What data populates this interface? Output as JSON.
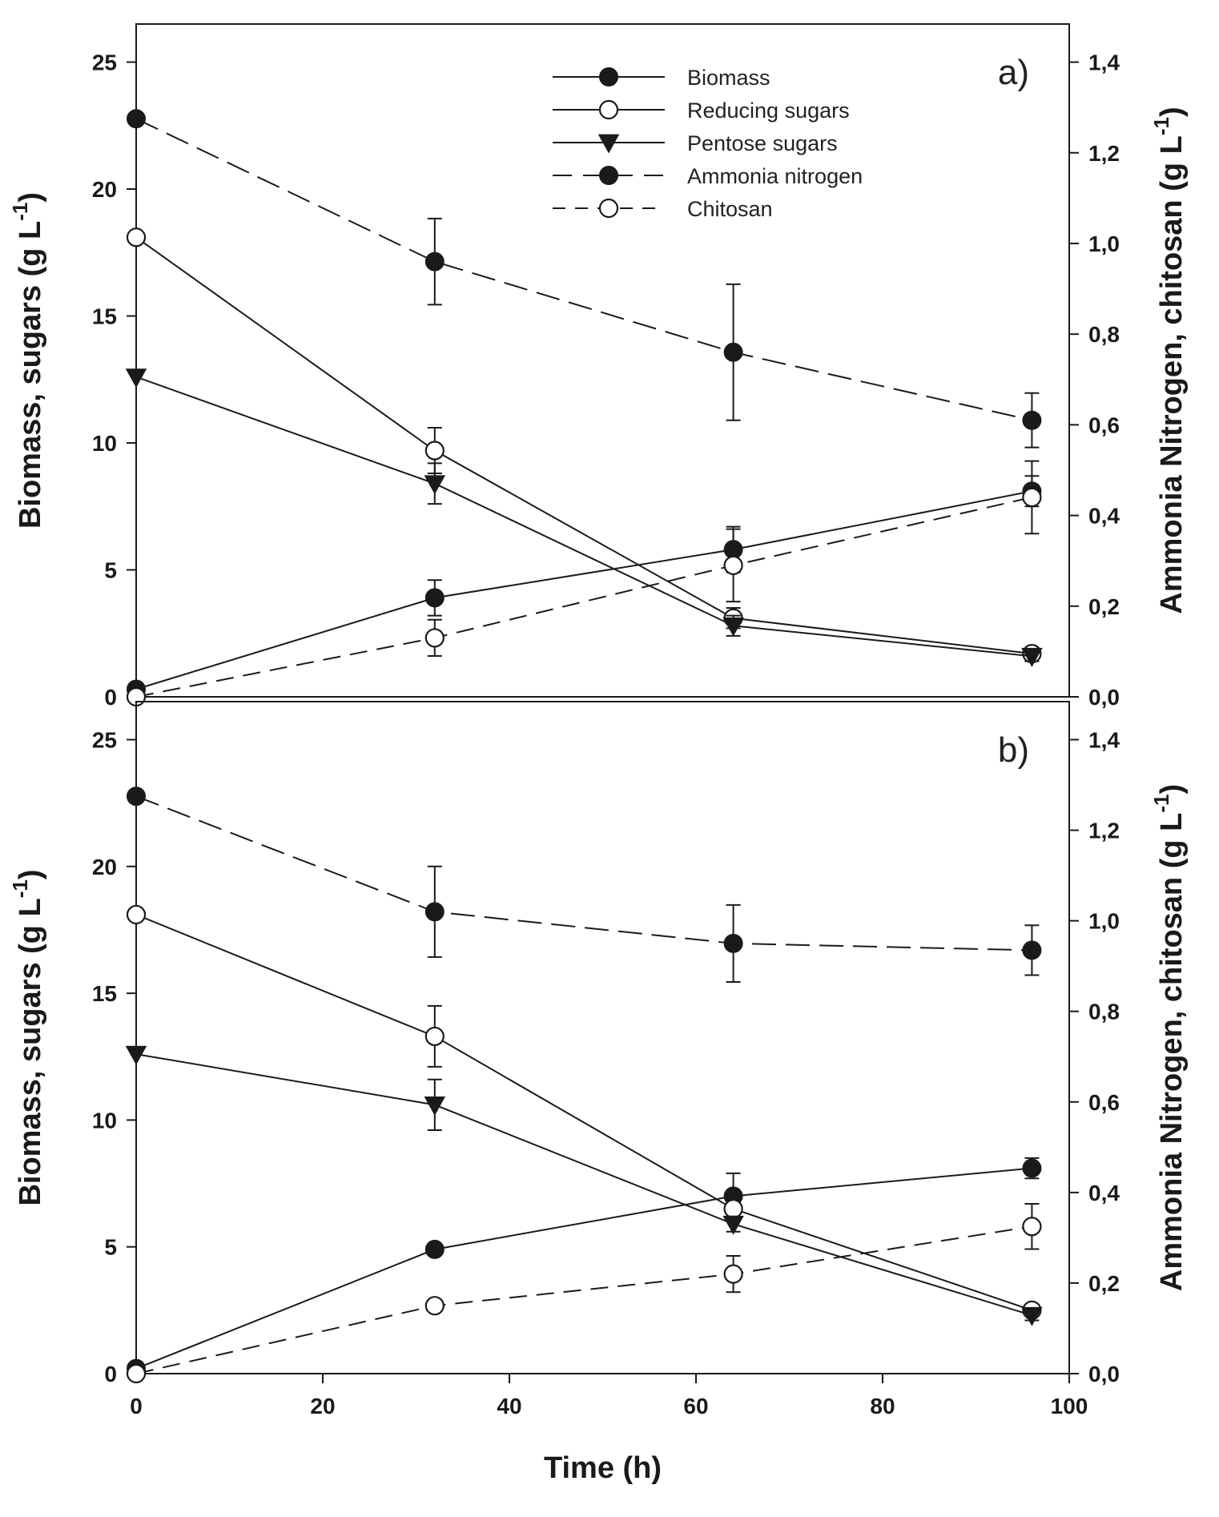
{
  "chart_data": [
    {
      "panel_label": "a)",
      "type": "line",
      "xlabel": "Time (h)",
      "ylabel_left": "Biomass, sugars (g L",
      "ylabel_left_unit": "-1",
      "ylabel_left_close": ")",
      "ylabel_right": "Ammonia Nitrogen, chitosan (g L",
      "ylabel_right_unit": "-1",
      "ylabel_right_close": ")",
      "xlim": [
        0,
        100
      ],
      "ylim_left": [
        0,
        26.5
      ],
      "ylim_right": [
        0,
        1.484
      ],
      "yticks_left": [
        "0",
        "5",
        "10",
        "15",
        "20",
        "25"
      ],
      "yticks_right": [
        "0,0",
        "0,2",
        "0,4",
        "0,6",
        "0,8",
        "1,0",
        "1,2",
        "1,4"
      ],
      "x": [
        0,
        32,
        64,
        96
      ],
      "series": [
        {
          "name": "Biomass",
          "axis": "left",
          "marker": "filled-circle",
          "line": "solid",
          "values": [
            0.3,
            3.9,
            5.8,
            8.1
          ],
          "errors": [
            0,
            0.7,
            0.9,
            0.6
          ]
        },
        {
          "name": "Reducing sugars",
          "axis": "left",
          "marker": "open-circle",
          "line": "solid",
          "values": [
            18.1,
            9.7,
            3.1,
            1.7
          ],
          "errors": [
            0,
            0.9,
            0.4,
            0.2
          ]
        },
        {
          "name": "Pentose sugars",
          "axis": "left",
          "marker": "filled-triangle-down",
          "line": "solid",
          "values": [
            12.6,
            8.4,
            2.8,
            1.6
          ],
          "errors": [
            0,
            0.8,
            0.4,
            0.2
          ]
        },
        {
          "name": "Ammonia nitrogen",
          "axis": "right",
          "marker": "filled-circle",
          "line": "dashed-long",
          "values": [
            1.275,
            0.96,
            0.76,
            0.61
          ],
          "errors": [
            0,
            0.095,
            0.15,
            0.06
          ]
        },
        {
          "name": "Chitosan",
          "axis": "right",
          "marker": "open-circle",
          "line": "dashed",
          "values": [
            0.0,
            0.13,
            0.29,
            0.44
          ],
          "errors": [
            0,
            0.04,
            0.08,
            0.08
          ]
        }
      ]
    },
    {
      "panel_label": "b)",
      "type": "line",
      "xlabel": "Time (h)",
      "ylabel_left": "Biomass, sugars (g L",
      "ylabel_left_unit": "-1",
      "ylabel_left_close": ")",
      "ylabel_right": "Ammonia Nitrogen, chitosan (g L",
      "ylabel_right_unit": "-1",
      "ylabel_right_close": ")",
      "xlim": [
        0,
        100
      ],
      "ylim_left": [
        0,
        26.5
      ],
      "ylim_right": [
        0,
        1.484
      ],
      "yticks_left": [
        "0",
        "5",
        "10",
        "15",
        "20",
        "25"
      ],
      "yticks_right": [
        "0,0",
        "0,2",
        "0,4",
        "0,6",
        "0,8",
        "1,0",
        "1,2",
        "1,4"
      ],
      "xticks": [
        "0",
        "20",
        "40",
        "60",
        "80",
        "100"
      ],
      "x": [
        0,
        32,
        64,
        96
      ],
      "series": [
        {
          "name": "Biomass",
          "axis": "left",
          "marker": "filled-circle",
          "line": "solid",
          "values": [
            0.2,
            4.9,
            7.0,
            8.1
          ],
          "errors": [
            0,
            0.2,
            0.9,
            0.4
          ]
        },
        {
          "name": "Reducing sugars",
          "axis": "left",
          "marker": "open-circle",
          "line": "solid",
          "values": [
            18.1,
            13.3,
            6.5,
            2.5
          ],
          "errors": [
            0,
            1.2,
            0.4,
            0.2
          ]
        },
        {
          "name": "Pentose sugars",
          "axis": "left",
          "marker": "filled-triangle-down",
          "line": "solid",
          "values": [
            12.6,
            10.6,
            5.9,
            2.3
          ],
          "errors": [
            0,
            1.0,
            0.3,
            0.2
          ]
        },
        {
          "name": "Ammonia nitrogen",
          "axis": "right",
          "marker": "filled-circle",
          "line": "dashed-long",
          "values": [
            1.275,
            1.02,
            0.95,
            0.935
          ],
          "errors": [
            0,
            0.1,
            0.085,
            0.055
          ]
        },
        {
          "name": "Chitosan",
          "axis": "right",
          "marker": "open-circle",
          "line": "dashed",
          "values": [
            0.0,
            0.15,
            0.22,
            0.325
          ],
          "errors": [
            0,
            0.01,
            0.04,
            0.05
          ]
        }
      ]
    }
  ],
  "legend": {
    "placement": "top-center",
    "items": [
      {
        "label": "Biomass",
        "marker": "filled-circle",
        "line": "solid"
      },
      {
        "label": "Reducing sugars",
        "marker": "open-circle",
        "line": "solid"
      },
      {
        "label": "Pentose sugars",
        "marker": "filled-triangle-down",
        "line": "solid"
      },
      {
        "label": "Ammonia nitrogen",
        "marker": "filled-circle",
        "line": "dashed-long"
      },
      {
        "label": "Chitosan",
        "marker": "open-circle",
        "line": "dashed"
      }
    ]
  },
  "colors": {
    "ink": "#1a1a1a",
    "background": "#ffffff"
  }
}
